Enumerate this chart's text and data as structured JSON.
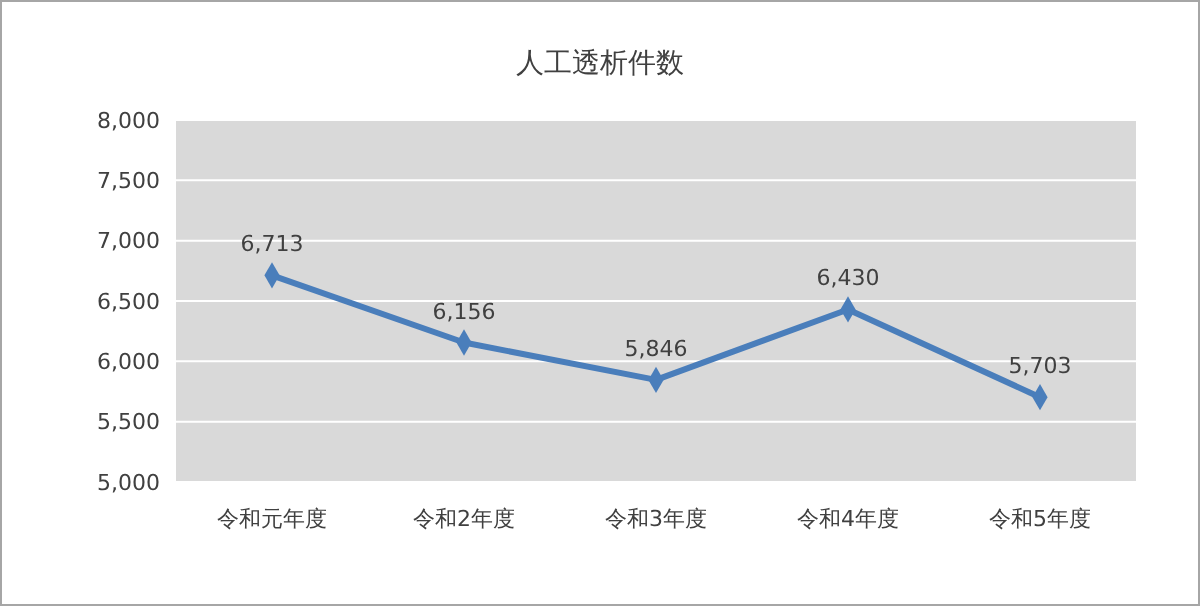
{
  "chart_data": {
    "type": "line",
    "title": "人工透析件数",
    "categories": [
      "令和元年度",
      "令和2年度",
      "令和3年度",
      "令和4年度",
      "令和5年度"
    ],
    "values": [
      6713,
      6156,
      5846,
      6430,
      5703
    ],
    "value_labels": [
      "6,713",
      "6,156",
      "5,846",
      "6,430",
      "5,703"
    ],
    "color": "#4a7ebb",
    "marker": "diamond",
    "line_style": "solid",
    "grid": "y",
    "ylim": [
      5000,
      8000
    ],
    "yticks": [
      {
        "value": 5000,
        "label": "5,000"
      },
      {
        "value": 5500,
        "label": "5,500"
      },
      {
        "value": 6000,
        "label": "6,000"
      },
      {
        "value": 6500,
        "label": "6,500"
      },
      {
        "value": 7000,
        "label": "7,000"
      },
      {
        "value": 7500,
        "label": "7,500"
      },
      {
        "value": 8000,
        "label": "8,000"
      }
    ]
  }
}
